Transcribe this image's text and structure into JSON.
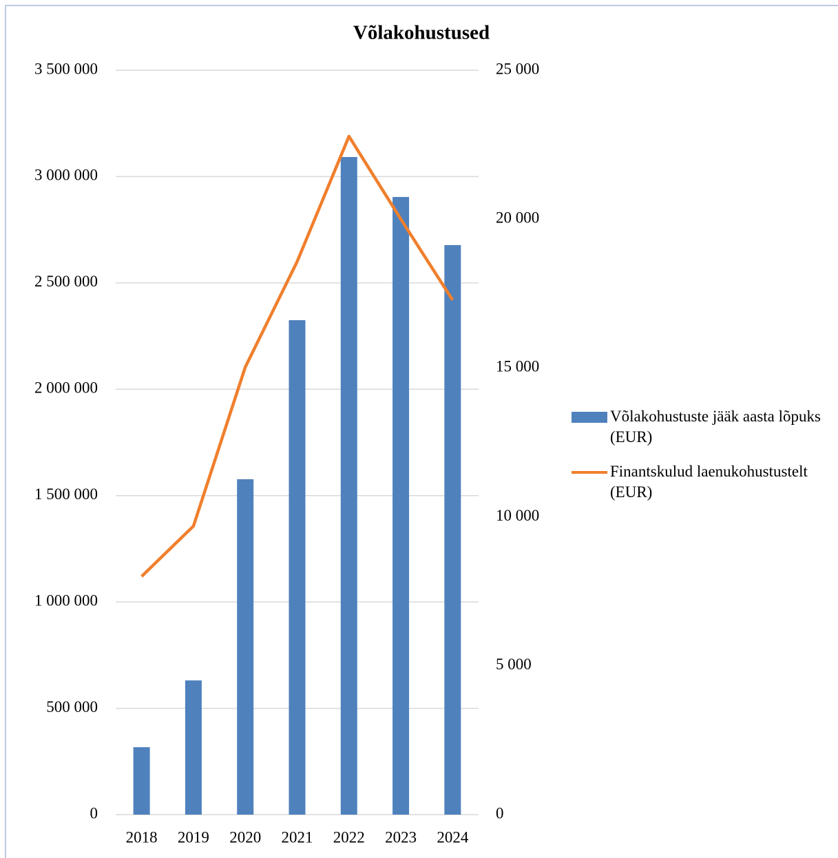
{
  "chart_data": {
    "type": "bar_line",
    "title": "Võlakohustused",
    "categories": [
      "2018",
      "2019",
      "2020",
      "2021",
      "2022",
      "2023",
      "2024"
    ],
    "series": [
      {
        "name": "Võlakohustuste jääk aasta lõpuks (EUR)",
        "type": "bar",
        "color": "#4f81bd",
        "values": [
          317000,
          631000,
          1577000,
          2325000,
          3092000,
          2904000,
          2678000
        ]
      },
      {
        "name": "Finantskulud laenukohustustelt (EUR)",
        "type": "line",
        "axis": "y2",
        "color": "#f07f2d",
        "values": [
          8000,
          9690,
          15030,
          18570,
          22780,
          20000,
          17280
        ]
      }
    ],
    "ylim": [
      0,
      3500000
    ],
    "yticks": [
      0,
      {
        "value": 500000,
        "label": "500 000"
      },
      {
        "value": 1000000,
        "label": "1 000 000"
      },
      {
        "value": 1500000,
        "label": "1 500 000"
      },
      {
        "value": 2000000,
        "label": "2 000 000"
      },
      {
        "value": 2500000,
        "label": "2 500 000"
      },
      {
        "value": 3000000,
        "label": "3 000 000"
      },
      {
        "value": 3500000,
        "label": "3 500 000"
      }
    ],
    "y2lim": [
      0,
      25000
    ],
    "y2ticks": [
      0,
      {
        "value": 5000,
        "label": "5 000"
      },
      {
        "value": 10000,
        "label": "10 000"
      },
      {
        "value": 15000,
        "label": "15 000"
      },
      {
        "value": 20000,
        "label": "20 000"
      },
      {
        "value": 25000,
        "label": "25 000"
      }
    ],
    "grid": true,
    "legend": "right"
  }
}
